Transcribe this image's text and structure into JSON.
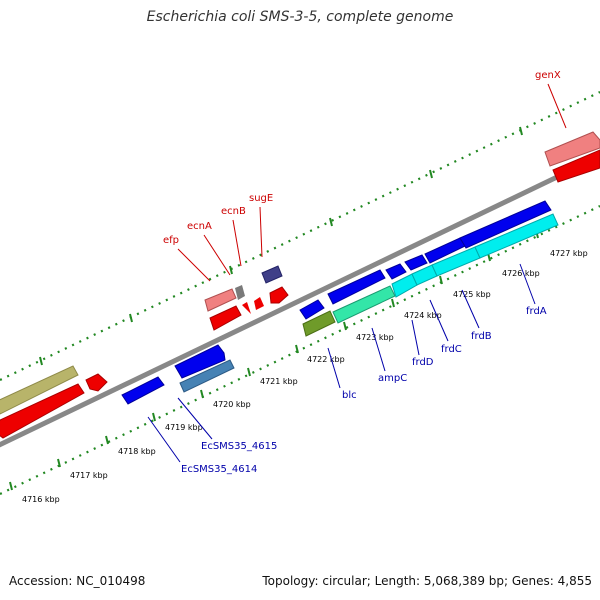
{
  "title": "Escherichia coli SMS-3-5, complete genome",
  "footer": {
    "accession": "Accession: NC_010498",
    "topology": "Topology: circular; Length: 5,068,389 bp; Genes: 4,855"
  },
  "ticks": [
    "4716 kbp",
    "4717 kbp",
    "4718 kbp",
    "4719 kbp",
    "4720 kbp",
    "4721 kbp",
    "4722 kbp",
    "4723 kbp",
    "4724 kbp",
    "4725 kbp",
    "4726 kbp",
    "4727 kbp"
  ],
  "genes": [
    {
      "name": "genX",
      "color": "#cc0000"
    },
    {
      "name": "efp",
      "color": "#cc0000"
    },
    {
      "name": "ecnA",
      "color": "#cc0000"
    },
    {
      "name": "ecnB",
      "color": "#cc0000"
    },
    {
      "name": "sugE",
      "color": "#cc0000"
    },
    {
      "name": "blc",
      "color": "#0000aa"
    },
    {
      "name": "ampC",
      "color": "#0000aa"
    },
    {
      "name": "frdD",
      "color": "#0000aa"
    },
    {
      "name": "frdC",
      "color": "#0000aa"
    },
    {
      "name": "frdB",
      "color": "#0000aa"
    },
    {
      "name": "frdA",
      "color": "#0000aa"
    },
    {
      "name": "EcSMS35_4615",
      "color": "#0000aa"
    },
    {
      "name": "EcSMS35_4614",
      "color": "#0000aa"
    }
  ]
}
